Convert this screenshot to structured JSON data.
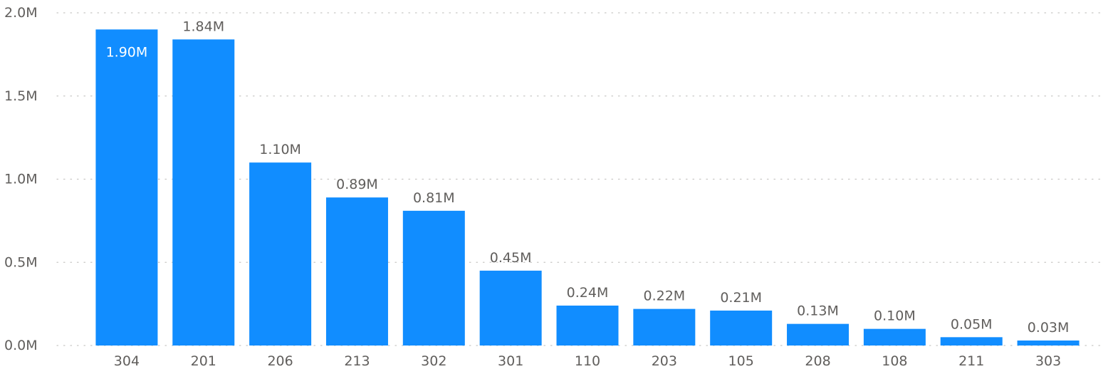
{
  "chart_data": {
    "type": "bar",
    "categories": [
      "304",
      "201",
      "206",
      "213",
      "302",
      "301",
      "110",
      "203",
      "105",
      "208",
      "108",
      "211",
      "303"
    ],
    "values": [
      1900000,
      1840000,
      1100000,
      890000,
      810000,
      450000,
      240000,
      220000,
      210000,
      130000,
      100000,
      50000,
      30000
    ],
    "data_labels": [
      "1.90M",
      "1.84M",
      "1.10M",
      "0.89M",
      "0.81M",
      "0.45M",
      "0.24M",
      "0.22M",
      "0.21M",
      "0.13M",
      "0.10M",
      "0.05M",
      "0.03M"
    ],
    "title": "",
    "xlabel": "",
    "ylabel": "",
    "ylim": [
      0,
      2000000
    ],
    "y_ticks": [
      0,
      500000,
      1000000,
      1500000,
      2000000
    ],
    "y_tick_labels": [
      "0.0M",
      "0.5M",
      "1.0M",
      "1.5M",
      "2.0M"
    ],
    "grid": true,
    "bar_color": "#118DFF",
    "label_color": "#605E5C",
    "inside_label_color": "#FFFFFF",
    "grid_color": "#C8C6C4"
  }
}
